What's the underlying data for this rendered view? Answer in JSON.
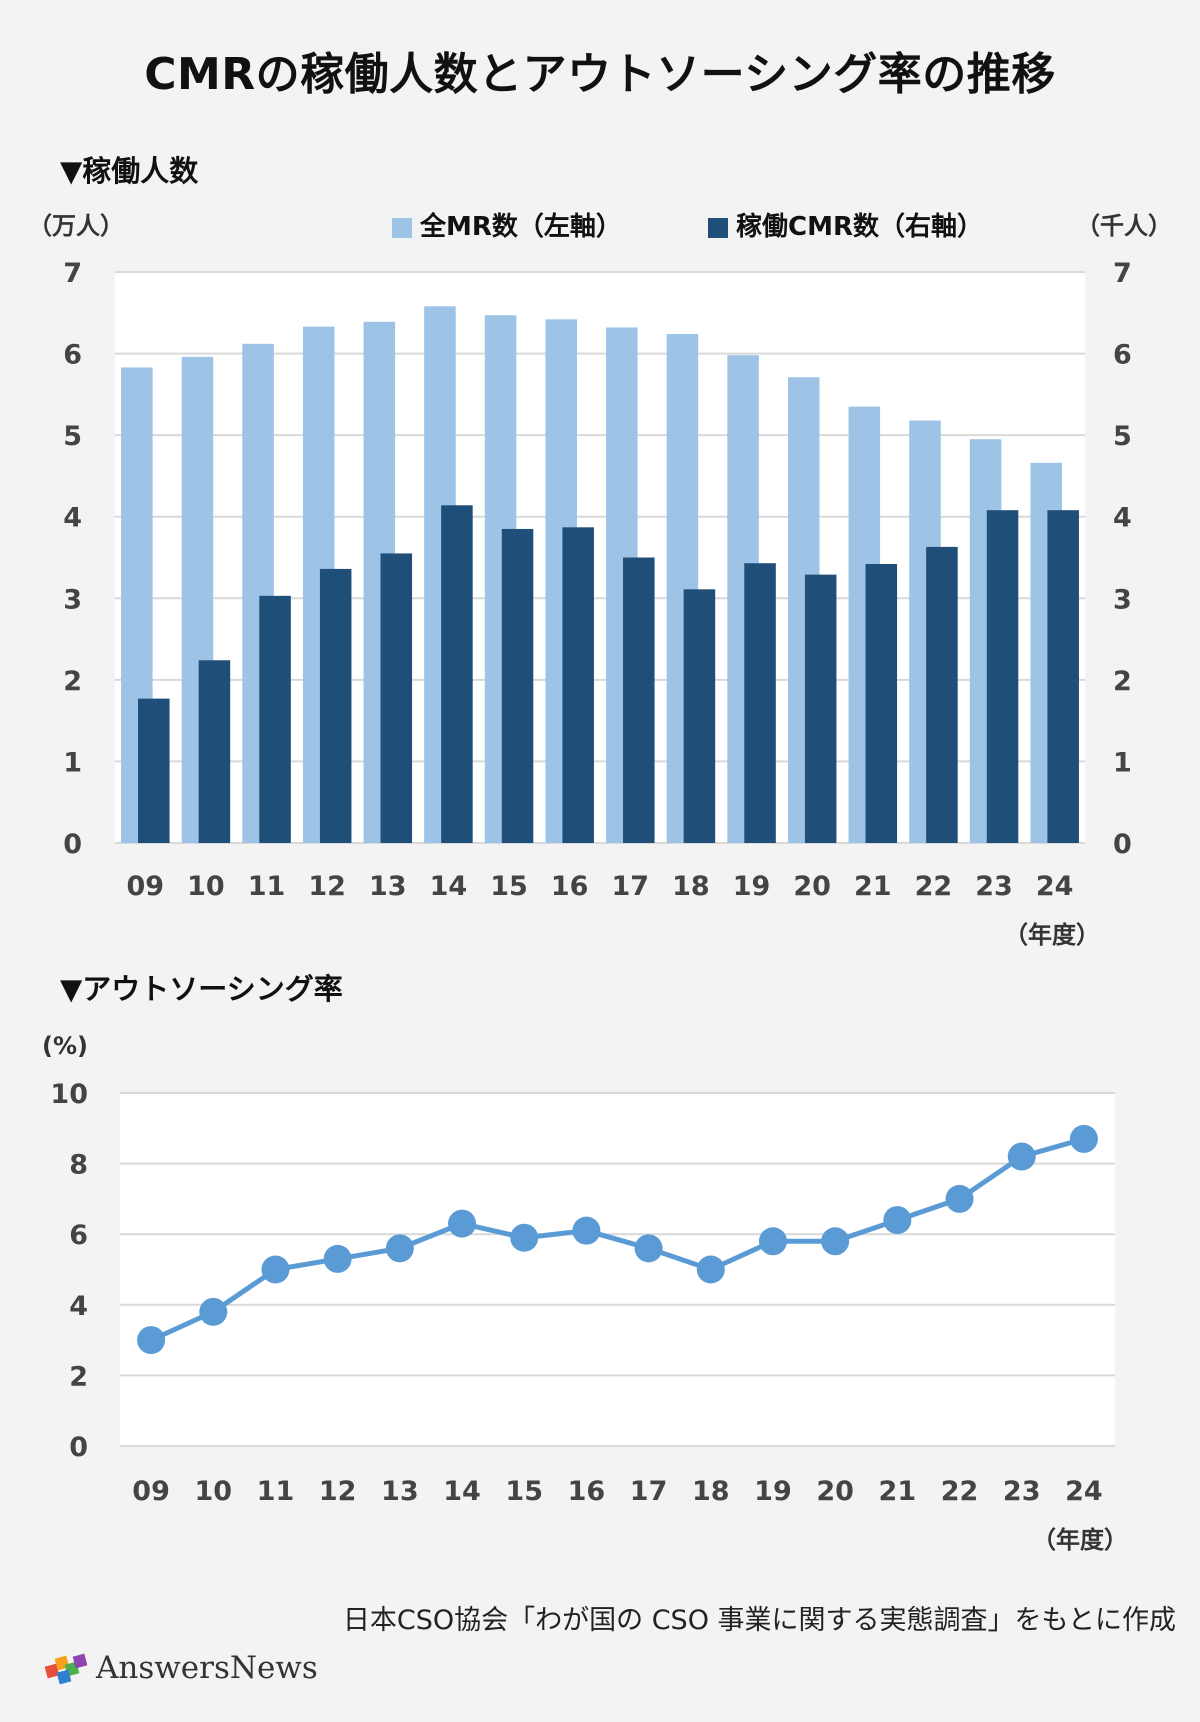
{
  "title": "CMRの稼働人数とアウトソーシング率の推移",
  "source": "日本CSO協会「わが国の CSO 事業に関する実態調査」をもとに作成",
  "logo": {
    "text": "AnswersNews"
  },
  "colors": {
    "background": "#f3f3f3",
    "plot_bg": "#ffffff",
    "gridline": "#d9d9d9",
    "light_bar": "#9dc3e6",
    "dark_bar": "#1f4e79",
    "line": "#5b9bd5",
    "tick": "#444444"
  },
  "chart_data": [
    {
      "type": "bar",
      "section_title": "▼稼働人数",
      "categories": [
        "09",
        "10",
        "11",
        "12",
        "13",
        "14",
        "15",
        "16",
        "17",
        "18",
        "19",
        "20",
        "21",
        "22",
        "23",
        "24"
      ],
      "series": [
        {
          "name": "全MR数（左軸）",
          "axis": "left",
          "color": "#9dc3e6",
          "values": [
            5.83,
            5.96,
            6.12,
            6.33,
            6.39,
            6.58,
            6.47,
            6.42,
            6.32,
            6.24,
            5.98,
            5.71,
            5.35,
            5.18,
            4.95,
            4.66
          ]
        },
        {
          "name": "稼働CMR数（右軸）",
          "axis": "right",
          "color": "#1f4e79",
          "values": [
            1.77,
            2.24,
            3.03,
            3.36,
            3.55,
            4.14,
            3.85,
            3.87,
            3.5,
            3.11,
            3.43,
            3.29,
            3.42,
            3.63,
            4.08,
            4.08
          ]
        }
      ],
      "yleft_label": "（万人）",
      "yright_label": "（千人）",
      "xlabel": "（年度）",
      "ylim": [
        0,
        7
      ],
      "yticks": [
        0,
        1,
        2,
        3,
        4,
        5,
        6,
        7
      ],
      "grid": true,
      "legend": "top"
    },
    {
      "type": "line",
      "section_title": "▼アウトソーシング率",
      "categories": [
        "09",
        "10",
        "11",
        "12",
        "13",
        "14",
        "15",
        "16",
        "17",
        "18",
        "19",
        "20",
        "21",
        "22",
        "23",
        "24"
      ],
      "series": [
        {
          "name": "",
          "color": "#5b9bd5",
          "values": [
            3.0,
            3.8,
            5.0,
            5.3,
            5.6,
            6.3,
            5.9,
            6.1,
            5.6,
            5.0,
            5.8,
            5.8,
            6.4,
            7.0,
            8.2,
            8.7
          ]
        }
      ],
      "ylabel": "(%)",
      "xlabel": "（年度）",
      "ylim": [
        0,
        10
      ],
      "yticks": [
        0,
        2,
        4,
        6,
        8,
        10
      ],
      "grid": true,
      "legend": "none"
    }
  ]
}
